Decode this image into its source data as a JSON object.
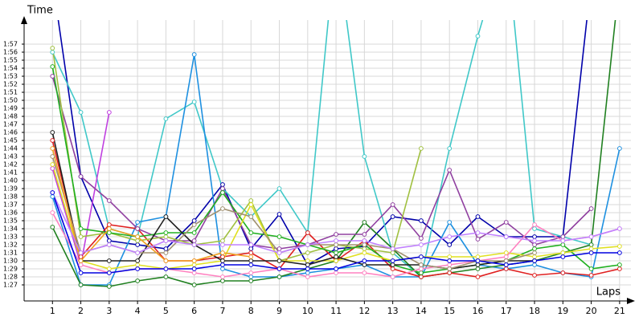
{
  "chart_data": {
    "type": "line",
    "y_label": "Time",
    "x_label": "Laps",
    "x": [
      1,
      2,
      3,
      4,
      5,
      6,
      7,
      8,
      9,
      10,
      11,
      12,
      13,
      14,
      15,
      16,
      17,
      18,
      19,
      20,
      21
    ],
    "xlim": [
      0,
      21.4
    ],
    "xticks": [
      1,
      2,
      3,
      4,
      5,
      6,
      7,
      8,
      9,
      10,
      11,
      12,
      13,
      14,
      15,
      16,
      17,
      18,
      19,
      20,
      21
    ],
    "ylim": [
      85,
      120
    ],
    "yticks": [
      {
        "value": 87,
        "label": "1:27"
      },
      {
        "value": 88,
        "label": "1:28"
      },
      {
        "value": 89,
        "label": "1:29"
      },
      {
        "value": 90,
        "label": "1:30"
      },
      {
        "value": 91,
        "label": "1:31"
      },
      {
        "value": 92,
        "label": "1:32"
      },
      {
        "value": 93,
        "label": "1:33"
      },
      {
        "value": 94,
        "label": "1:34"
      },
      {
        "value": 95,
        "label": "1:35"
      },
      {
        "value": 96,
        "label": "1:36"
      },
      {
        "value": 97,
        "label": "1:37"
      },
      {
        "value": 98,
        "label": "1:38"
      },
      {
        "value": 99,
        "label": "1:39"
      },
      {
        "value": 100,
        "label": "1:40"
      },
      {
        "value": 101,
        "label": "1:41"
      },
      {
        "value": 102,
        "label": "1:42"
      },
      {
        "value": 103,
        "label": "1:43"
      },
      {
        "value": 104,
        "label": "1:44"
      },
      {
        "value": 105,
        "label": "1:45"
      },
      {
        "value": 106,
        "label": "1:46"
      },
      {
        "value": 107,
        "label": "1:47"
      },
      {
        "value": 108,
        "label": "1:48"
      },
      {
        "value": 109,
        "label": "1:49"
      },
      {
        "value": 110,
        "label": "1:50"
      },
      {
        "value": 111,
        "label": "1:51"
      },
      {
        "value": 112,
        "label": "1:52"
      },
      {
        "value": 113,
        "label": "1:53"
      },
      {
        "value": 114,
        "label": "1:54"
      },
      {
        "value": 115,
        "label": "1:55"
      },
      {
        "value": 116,
        "label": "1:56"
      },
      {
        "value": 117,
        "label": "1:57"
      }
    ],
    "grid": true,
    "series": [
      {
        "color": "#0000aa",
        "values": [
          125,
          100.5,
          92.5,
          92,
          91.5,
          95,
          99.5,
          91.5,
          95.8,
          89.5,
          91.5,
          91.8,
          95.5,
          95,
          92,
          95.5,
          93,
          93,
          93,
          125,
          null
        ]
      },
      {
        "color": "#40c8c8",
        "values": [
          116,
          108.5,
          94,
          93,
          107.7,
          109.8,
          99,
          95.5,
          99,
          93.5,
          130,
          103,
          91,
          88,
          104,
          118,
          130,
          94,
          93,
          92,
          null
        ]
      },
      {
        "color": "#1e90e0",
        "values": [
          98,
          87,
          87,
          94.8,
          95.5,
          115.7,
          89,
          88,
          88,
          88.5,
          89,
          89.5,
          88,
          88,
          94.8,
          89.5,
          89,
          89.5,
          88.5,
          88,
          104
        ]
      },
      {
        "color": "#208020",
        "values": [
          94.2,
          87,
          86.8,
          87.5,
          88,
          87,
          87.5,
          87.5,
          88,
          89,
          90,
          94.8,
          91.5,
          88,
          88.5,
          89,
          89.5,
          90,
          91,
          92,
          125
        ]
      },
      {
        "color": "#e02020",
        "values": [
          105,
          90.5,
          94.5,
          94,
          90,
          90,
          90.5,
          91,
          89,
          93.5,
          90,
          92.5,
          89,
          88,
          88.5,
          88,
          89,
          88.2,
          88.5,
          88.2,
          89
        ]
      },
      {
        "color": "#c040e0",
        "values": [
          101.5,
          89.5,
          108.5,
          null,
          null,
          null,
          null,
          null,
          null,
          null,
          null,
          null,
          null,
          null,
          null,
          null,
          null,
          null,
          null,
          null,
          null
        ]
      },
      {
        "color": "#9040a0",
        "values": [
          113,
          100.5,
          97.5,
          94,
          92.5,
          92.5,
          99,
          92,
          91.5,
          92,
          93.3,
          93.3,
          97,
          92.8,
          101.3,
          92.7,
          94.8,
          92,
          93,
          96.5,
          null
        ]
      },
      {
        "color": "#a0c040",
        "values": [
          116.5,
          93,
          93.5,
          92.5,
          93,
          92,
          92.5,
          97.5,
          90,
          91,
          92,
          91.5,
          91,
          104,
          null,
          null,
          null,
          null,
          null,
          null,
          null
        ]
      },
      {
        "color": "#20b020",
        "values": [
          114.2,
          94,
          93.5,
          93,
          93.5,
          93.5,
          98.5,
          93.5,
          93,
          92,
          91,
          92,
          89.5,
          88.5,
          89,
          89.5,
          90,
          91.5,
          92,
          89,
          89.5
        ]
      },
      {
        "color": "#e0e020",
        "values": [
          102,
          90,
          89,
          89.5,
          89,
          89.5,
          90,
          97,
          90,
          90,
          90,
          91,
          90,
          90.5,
          90.5,
          90.5,
          91,
          90.5,
          91,
          91.5,
          91.8
        ]
      },
      {
        "color": "#202020",
        "values": [
          106,
          90,
          90,
          90,
          95.5,
          92,
          90,
          90,
          90,
          89.5,
          90.5,
          89.5,
          89.5,
          89.5,
          89,
          89.5,
          90,
          90,
          null,
          null,
          null
        ]
      },
      {
        "color": "#ff80c0",
        "values": [
          96,
          89.5,
          88.5,
          89,
          89,
          88.5,
          88,
          88.5,
          89,
          88,
          88.5,
          88.5,
          88,
          89,
          89.5,
          90,
          90.5,
          94.5,
          92.5,
          93,
          94
        ]
      },
      {
        "color": "#a09070",
        "values": [
          103,
          91,
          92,
          91,
          91,
          94.5,
          96.5,
          95.5,
          91,
          92,
          92,
          92,
          91.5,
          89.5,
          89,
          90,
          90,
          91,
          null,
          null,
          null
        ]
      },
      {
        "color": "#f0a020",
        "values": [
          104,
          90,
          94,
          93,
          90,
          90,
          91,
          90.5,
          null,
          null,
          null,
          null,
          null,
          null,
          null,
          null,
          null,
          null,
          null,
          null,
          null
        ]
      },
      {
        "color": "#c080ff",
        "values": [
          98.5,
          91,
          92,
          91,
          92.5,
          92,
          92,
          92,
          91,
          92,
          92.5,
          92.5,
          91.5,
          92,
          93,
          93.5,
          93,
          92.5,
          92.5,
          93,
          94
        ]
      },
      {
        "color": "#0000e0",
        "values": [
          98.5,
          88.5,
          88.5,
          89,
          89,
          89,
          89.5,
          89.5,
          89,
          89,
          89,
          90,
          90,
          90.5,
          90,
          90,
          89.5,
          90,
          90.5,
          91,
          91
        ]
      }
    ]
  }
}
